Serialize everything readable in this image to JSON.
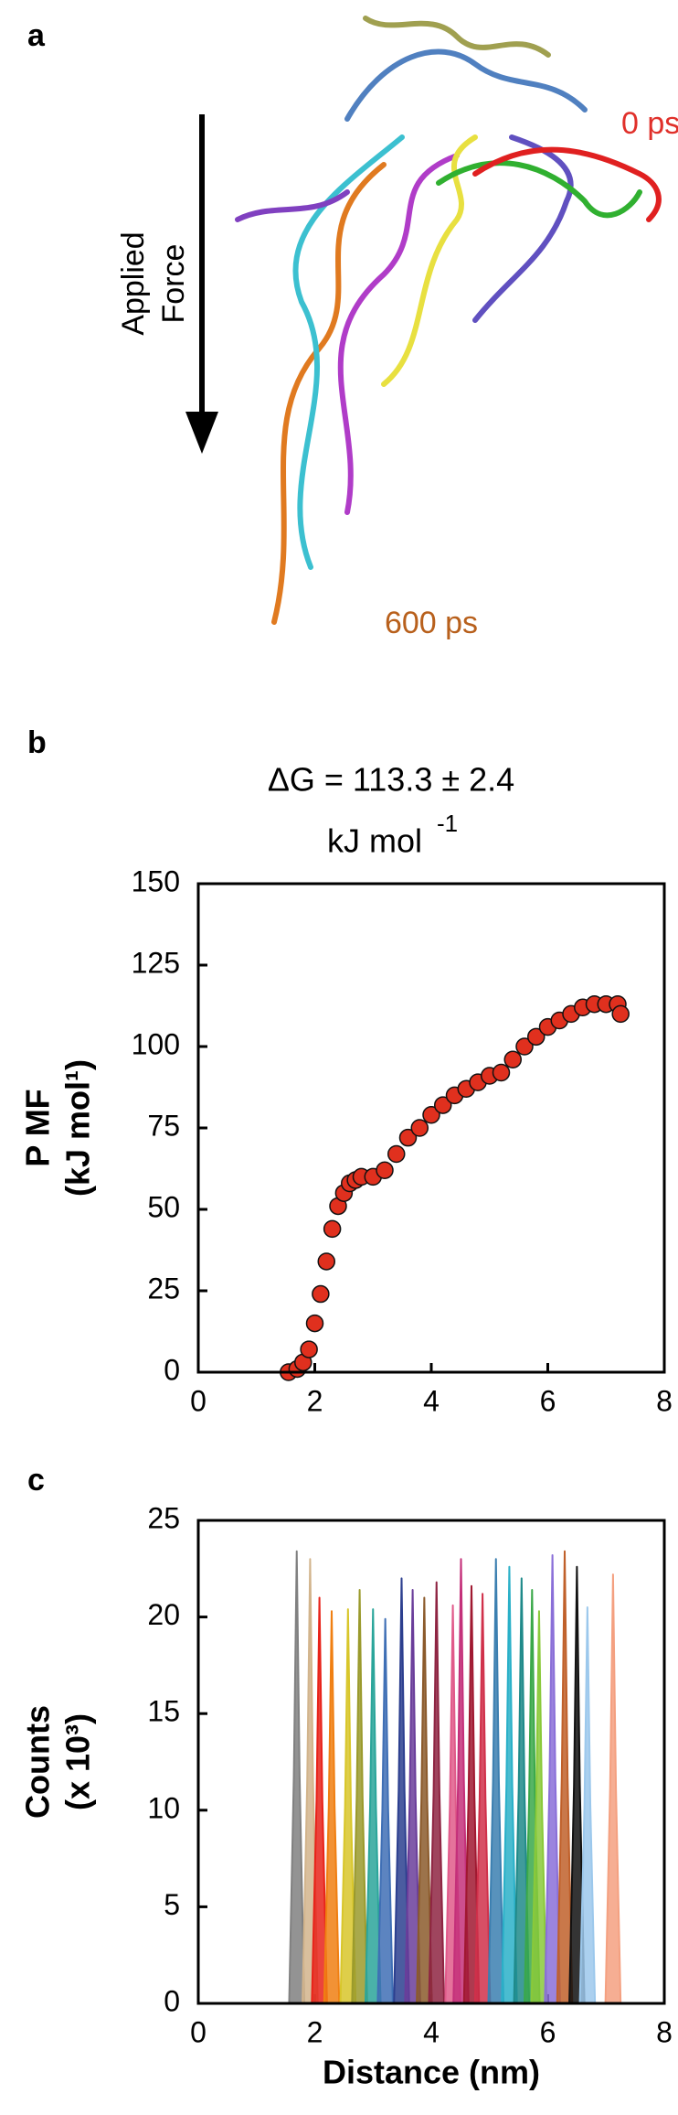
{
  "panel_a": {
    "label": "a",
    "force_label": [
      "Applied",
      "Force"
    ],
    "start_label": "0 ps",
    "end_label": "600 ps"
  },
  "chart_data": [
    {
      "type": "scatter",
      "panel_label": "b",
      "title": "ΔG = 113.3 ± 2.4",
      "subtitle": "kJ mol",
      "subtitle_sup": "-1",
      "y_label": [
        "P MF",
        "(kJ mol¹)"
      ],
      "xlim": [
        0,
        8
      ],
      "xticks": [
        0,
        2,
        4,
        6,
        8
      ],
      "ylim": [
        0,
        150
      ],
      "yticks": [
        0,
        25,
        50,
        75,
        100,
        125,
        150
      ],
      "color": "#e0301e",
      "edge_color": "#111111",
      "x": [
        1.55,
        1.7,
        1.8,
        1.9,
        2.0,
        2.1,
        2.2,
        2.3,
        2.4,
        2.5,
        2.6,
        2.7,
        2.8,
        3.0,
        3.2,
        3.4,
        3.6,
        3.8,
        4.0,
        4.2,
        4.4,
        4.6,
        4.8,
        5.0,
        5.2,
        5.4,
        5.6,
        5.8,
        6.0,
        6.2,
        6.4,
        6.6,
        6.8,
        7.0,
        7.2,
        7.25
      ],
      "values": [
        0,
        1,
        3,
        7,
        15,
        24,
        34,
        44,
        51,
        55,
        58,
        59,
        60,
        60,
        62,
        67,
        72,
        75,
        79,
        82,
        85,
        87,
        89,
        91,
        92,
        96,
        100,
        103,
        106,
        108,
        110,
        112,
        113,
        113,
        113,
        110
      ]
    },
    {
      "type": "area",
      "panel_label": "c",
      "x_label": "Distance (nm)",
      "y_label": [
        "Counts",
        "(x 10³)"
      ],
      "xlim": [
        0,
        8
      ],
      "xticks": [
        0,
        2,
        4,
        6,
        8
      ],
      "ylim": [
        0,
        25
      ],
      "yticks": [
        0,
        5,
        10,
        15,
        20,
        25
      ],
      "series": [
        {
          "color": "#808080",
          "x": [
            1.56,
            1.64,
            1.69,
            1.74,
            1.82
          ],
          "values": [
            0,
            11.7,
            23.4,
            11.7,
            0
          ]
        },
        {
          "color": "#d2b48c",
          "x": [
            1.79,
            1.87,
            1.92,
            1.97,
            2.05
          ],
          "values": [
            0,
            11.5,
            23.0,
            11.5,
            0
          ]
        },
        {
          "color": "#e8231a",
          "x": [
            1.95,
            2.03,
            2.08,
            2.13,
            2.21
          ],
          "values": [
            0,
            10.5,
            21.0,
            10.5,
            0
          ]
        },
        {
          "color": "#f07f12",
          "x": [
            2.16,
            2.24,
            2.29,
            2.34,
            2.42
          ],
          "values": [
            0,
            10.2,
            20.3,
            10.2,
            0
          ]
        },
        {
          "color": "#d8c62a",
          "x": [
            2.44,
            2.52,
            2.57,
            2.62,
            2.7
          ],
          "values": [
            0,
            10.2,
            20.4,
            10.2,
            0
          ]
        },
        {
          "color": "#9a9a2c",
          "x": [
            2.64,
            2.72,
            2.77,
            2.82,
            2.9
          ],
          "values": [
            0,
            10.7,
            21.4,
            10.7,
            0
          ]
        },
        {
          "color": "#2aa59a",
          "x": [
            2.87,
            2.95,
            3.0,
            3.05,
            3.13
          ],
          "values": [
            0,
            10.2,
            20.4,
            10.2,
            0
          ]
        },
        {
          "color": "#3f6fb5",
          "x": [
            3.08,
            3.16,
            3.21,
            3.26,
            3.34
          ],
          "values": [
            0,
            10.0,
            19.9,
            10.0,
            0
          ]
        },
        {
          "color": "#2c3f8f",
          "x": [
            3.36,
            3.44,
            3.49,
            3.54,
            3.62
          ],
          "values": [
            0,
            11.0,
            22.0,
            11.0,
            0
          ]
        },
        {
          "color": "#6a3d9a",
          "x": [
            3.55,
            3.63,
            3.68,
            3.73,
            3.81
          ],
          "values": [
            0,
            10.7,
            21.4,
            10.7,
            0
          ]
        },
        {
          "color": "#8b5a2b",
          "x": [
            3.75,
            3.83,
            3.88,
            3.93,
            4.01
          ],
          "values": [
            0,
            10.5,
            21.0,
            10.5,
            0
          ]
        },
        {
          "color": "#8e2442",
          "x": [
            3.96,
            4.04,
            4.09,
            4.14,
            4.22
          ],
          "values": [
            0,
            10.9,
            21.8,
            10.9,
            0
          ]
        },
        {
          "color": "#e05a8a",
          "x": [
            4.24,
            4.32,
            4.37,
            4.42,
            4.5
          ],
          "values": [
            0,
            10.3,
            20.6,
            10.3,
            0
          ]
        },
        {
          "color": "#c4307a",
          "x": [
            4.38,
            4.46,
            4.51,
            4.56,
            4.64
          ],
          "values": [
            0,
            11.5,
            23.0,
            11.5,
            0
          ]
        },
        {
          "color": "#a01830",
          "x": [
            4.56,
            4.64,
            4.69,
            4.74,
            4.82
          ],
          "values": [
            0,
            10.8,
            21.6,
            10.8,
            0
          ]
        },
        {
          "color": "#d0304a",
          "x": [
            4.75,
            4.83,
            4.88,
            4.93,
            5.01
          ],
          "values": [
            0,
            10.6,
            21.2,
            10.6,
            0
          ]
        },
        {
          "color": "#3b7fb0",
          "x": [
            4.98,
            5.06,
            5.11,
            5.16,
            5.24
          ],
          "values": [
            0,
            11.5,
            23.0,
            11.5,
            0
          ]
        },
        {
          "color": "#2ab0c8",
          "x": [
            5.21,
            5.29,
            5.34,
            5.39,
            5.47
          ],
          "values": [
            0,
            11.3,
            22.6,
            11.3,
            0
          ]
        },
        {
          "color": "#1f8a8a",
          "x": [
            5.42,
            5.5,
            5.55,
            5.6,
            5.68
          ],
          "values": [
            0,
            11.0,
            22.0,
            11.0,
            0
          ]
        },
        {
          "color": "#3aa84a",
          "x": [
            5.6,
            5.68,
            5.73,
            5.78,
            5.86
          ],
          "values": [
            0,
            10.7,
            21.4,
            10.7,
            0
          ]
        },
        {
          "color": "#8ac93a",
          "x": [
            5.72,
            5.8,
            5.85,
            5.9,
            5.98
          ],
          "values": [
            0,
            10.2,
            20.3,
            10.2,
            0
          ]
        },
        {
          "color": "#8a6fd8",
          "x": [
            5.95,
            6.03,
            6.08,
            6.13,
            6.21
          ],
          "values": [
            0,
            11.6,
            23.2,
            11.6,
            0
          ]
        },
        {
          "color": "#c0602a",
          "x": [
            6.16,
            6.24,
            6.29,
            6.34,
            6.42
          ],
          "values": [
            0,
            11.7,
            23.4,
            11.7,
            0
          ]
        },
        {
          "color": "#111111",
          "x": [
            6.37,
            6.45,
            6.5,
            6.55,
            6.63
          ],
          "values": [
            0,
            11.3,
            22.6,
            11.3,
            0
          ]
        },
        {
          "color": "#9cc8ec",
          "x": [
            6.55,
            6.63,
            6.68,
            6.73,
            6.81
          ],
          "values": [
            0,
            10.3,
            20.5,
            10.3,
            0
          ]
        },
        {
          "color": "#f4a080",
          "x": [
            6.99,
            7.07,
            7.12,
            7.17,
            7.25
          ],
          "values": [
            0,
            11.1,
            22.2,
            11.1,
            0
          ]
        }
      ]
    }
  ]
}
